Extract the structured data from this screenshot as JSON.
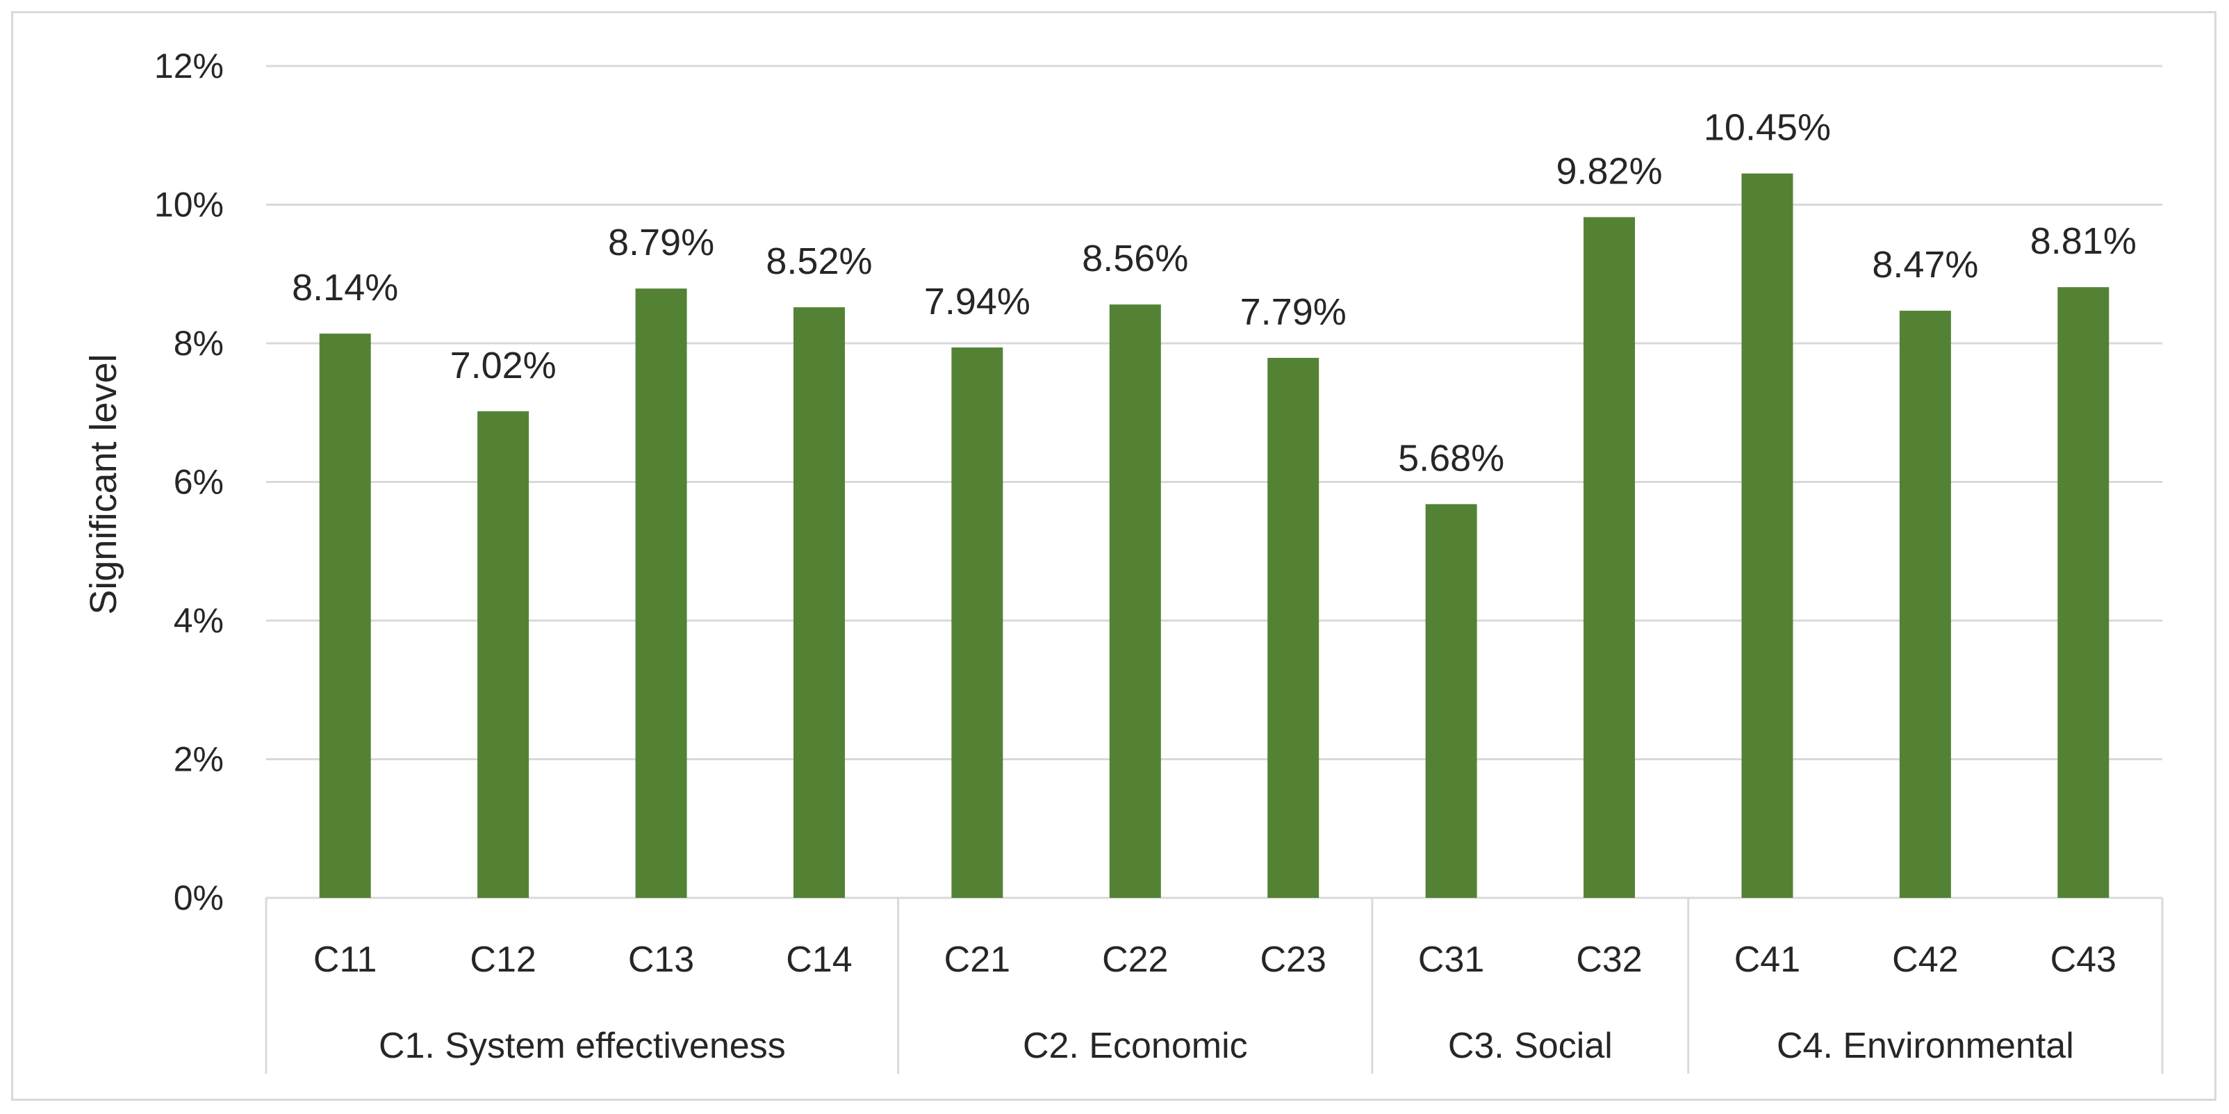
{
  "chart_data": {
    "type": "bar",
    "title": "",
    "xlabel": "",
    "ylabel": "Significant level",
    "ylim": [
      0,
      12
    ],
    "yticks": [
      "0%",
      "2%",
      "4%",
      "6%",
      "8%",
      "10%",
      "12%"
    ],
    "categories": [
      "C11",
      "C12",
      "C13",
      "C14",
      "C21",
      "C22",
      "C23",
      "C31",
      "C32",
      "C41",
      "C42",
      "C43"
    ],
    "values": [
      8.14,
      7.02,
      8.79,
      8.52,
      7.94,
      8.56,
      7.79,
      5.68,
      9.82,
      10.45,
      8.47,
      8.81
    ],
    "data_labels": [
      "8.14%",
      "7.02%",
      "8.79%",
      "8.52%",
      "7.94%",
      "8.56%",
      "7.79%",
      "5.68%",
      "9.82%",
      "10.45%",
      "8.47%",
      "8.81%"
    ],
    "groups": [
      {
        "label": "C1. System effectiveness",
        "count": 4
      },
      {
        "label": "C2. Economic",
        "count": 3
      },
      {
        "label": "C3. Social",
        "count": 2
      },
      {
        "label": "C4. Environmental",
        "count": 3
      }
    ],
    "grid": true,
    "legend": "none",
    "bar_color": "#548235"
  }
}
